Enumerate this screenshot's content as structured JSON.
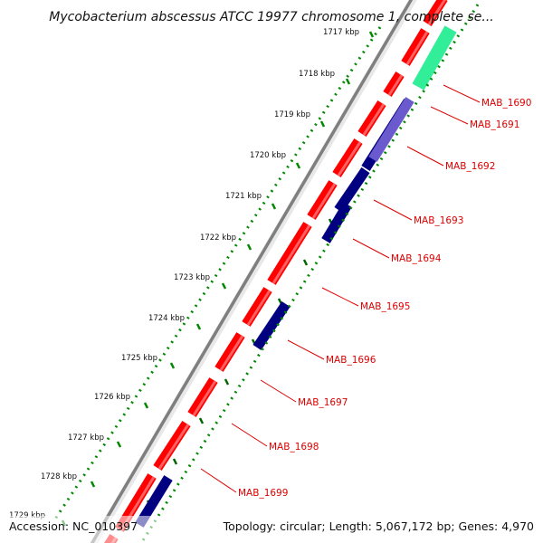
{
  "title": "Mycobacterium abscessus ATCC 19977 chromosome 1, complete se...",
  "footer": {
    "accession": "Accession: NC_010397",
    "summary": "Topology: circular; Length: 5,067,172 bp; Genes: 4,970"
  },
  "colors": {
    "backbone": "#7f7f7f",
    "forward_cds": "#ff0000",
    "reverse_cds": "#000080",
    "reverse_cds_light": "#6a5acd",
    "rna_feature": "#33ee99",
    "gc_skew_dots": "#008800",
    "gene_label": "#dd0000"
  },
  "ticks": [
    "1717 kbp",
    "1718 kbp",
    "1719 kbp",
    "1720 kbp",
    "1721 kbp",
    "1722 kbp",
    "1723 kbp",
    "1724 kbp",
    "1725 kbp",
    "1726 kbp",
    "1727 kbp",
    "1728 kbp",
    "1729 kbp"
  ],
  "genes": [
    "MAB_1690",
    "MAB_1691",
    "MAB_1692",
    "MAB_1693",
    "MAB_1694",
    "MAB_1695",
    "MAB_1696",
    "MAB_1697",
    "MAB_1698",
    "MAB_1699"
  ]
}
